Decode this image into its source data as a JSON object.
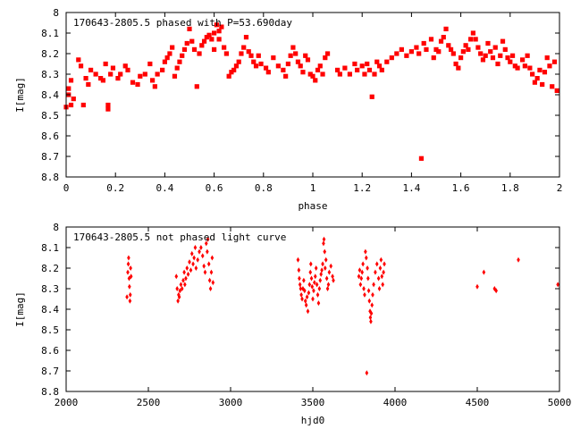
{
  "chart_data": [
    {
      "type": "scatter",
      "title": "170643-2805.5 phased with P=53.690day",
      "xlabel": "phase",
      "ylabel": "I[mag]",
      "xlim": [
        0,
        2
      ],
      "ylim": [
        8.8,
        8.0
      ],
      "y_inverted": true,
      "grid": false,
      "marker": "star",
      "color": "#ff0000",
      "x_ticks": [
        "0",
        "0.2",
        "0.4",
        "0.6",
        "0.8",
        "1",
        "1.2",
        "1.4",
        "1.6",
        "1.8",
        "2"
      ],
      "y_ticks": [
        "8",
        "8.1",
        "8.2",
        "8.3",
        "8.4",
        "8.5",
        "8.6",
        "8.7",
        "8.8"
      ],
      "x_tick_values": [
        0,
        0.2,
        0.4,
        0.6,
        0.8,
        1.0,
        1.2,
        1.4,
        1.6,
        1.8,
        2.0
      ],
      "y_tick_values": [
        8.0,
        8.1,
        8.2,
        8.3,
        8.4,
        8.5,
        8.6,
        8.7,
        8.8
      ],
      "points": [
        [
          0.0,
          8.46
        ],
        [
          0.01,
          8.4
        ],
        [
          0.01,
          8.37
        ],
        [
          0.02,
          8.45
        ],
        [
          0.02,
          8.33
        ],
        [
          0.03,
          8.42
        ],
        [
          0.05,
          8.23
        ],
        [
          0.06,
          8.26
        ],
        [
          0.07,
          8.45
        ],
        [
          0.08,
          8.32
        ],
        [
          0.09,
          8.35
        ],
        [
          0.1,
          8.28
        ],
        [
          0.12,
          8.3
        ],
        [
          0.14,
          8.32
        ],
        [
          0.15,
          8.33
        ],
        [
          0.16,
          8.25
        ],
        [
          0.17,
          8.45
        ],
        [
          0.17,
          8.47
        ],
        [
          0.18,
          8.3
        ],
        [
          0.19,
          8.27
        ],
        [
          0.21,
          8.32
        ],
        [
          0.22,
          8.3
        ],
        [
          0.24,
          8.26
        ],
        [
          0.25,
          8.28
        ],
        [
          0.27,
          8.34
        ],
        [
          0.29,
          8.35
        ],
        [
          0.3,
          8.31
        ],
        [
          0.32,
          8.3
        ],
        [
          0.34,
          8.25
        ],
        [
          0.35,
          8.33
        ],
        [
          0.36,
          8.36
        ],
        [
          0.37,
          8.3
        ],
        [
          0.39,
          8.28
        ],
        [
          0.4,
          8.24
        ],
        [
          0.41,
          8.22
        ],
        [
          0.42,
          8.2
        ],
        [
          0.43,
          8.17
        ],
        [
          0.44,
          8.31
        ],
        [
          0.45,
          8.27
        ],
        [
          0.46,
          8.24
        ],
        [
          0.47,
          8.21
        ],
        [
          0.48,
          8.18
        ],
        [
          0.49,
          8.15
        ],
        [
          0.5,
          8.08
        ],
        [
          0.51,
          8.14
        ],
        [
          0.52,
          8.18
        ],
        [
          0.53,
          8.36
        ],
        [
          0.54,
          8.2
        ],
        [
          0.55,
          8.16
        ],
        [
          0.56,
          8.14
        ],
        [
          0.57,
          8.12
        ],
        [
          0.58,
          8.11
        ],
        [
          0.59,
          8.13
        ],
        [
          0.6,
          8.1
        ],
        [
          0.6,
          8.18
        ],
        [
          0.61,
          8.06
        ],
        [
          0.62,
          8.09
        ],
        [
          0.62,
          8.13
        ],
        [
          0.63,
          8.07
        ],
        [
          0.64,
          8.17
        ],
        [
          0.65,
          8.2
        ],
        [
          0.66,
          8.31
        ],
        [
          0.67,
          8.29
        ],
        [
          0.68,
          8.28
        ],
        [
          0.69,
          8.26
        ],
        [
          0.7,
          8.24
        ],
        [
          0.71,
          8.2
        ],
        [
          0.72,
          8.17
        ],
        [
          0.73,
          8.12
        ],
        [
          0.74,
          8.19
        ],
        [
          0.75,
          8.21
        ],
        [
          0.76,
          8.24
        ],
        [
          0.77,
          8.26
        ],
        [
          0.78,
          8.21
        ],
        [
          0.79,
          8.25
        ],
        [
          0.81,
          8.27
        ],
        [
          0.82,
          8.29
        ],
        [
          0.84,
          8.22
        ],
        [
          0.86,
          8.26
        ],
        [
          0.88,
          8.28
        ],
        [
          0.89,
          8.31
        ],
        [
          0.9,
          8.25
        ],
        [
          0.91,
          8.21
        ],
        [
          0.92,
          8.17
        ],
        [
          0.93,
          8.2
        ],
        [
          0.94,
          8.24
        ],
        [
          0.95,
          8.26
        ],
        [
          0.96,
          8.29
        ],
        [
          0.97,
          8.21
        ],
        [
          0.98,
          8.23
        ],
        [
          0.99,
          8.3
        ],
        [
          1.0,
          8.31
        ],
        [
          1.01,
          8.33
        ],
        [
          1.02,
          8.28
        ],
        [
          1.03,
          8.26
        ],
        [
          1.04,
          8.3
        ],
        [
          1.05,
          8.22
        ],
        [
          1.06,
          8.2
        ],
        [
          1.1,
          8.28
        ],
        [
          1.11,
          8.3
        ],
        [
          1.13,
          8.27
        ],
        [
          1.15,
          8.3
        ],
        [
          1.17,
          8.25
        ],
        [
          1.18,
          8.28
        ],
        [
          1.2,
          8.26
        ],
        [
          1.21,
          8.3
        ],
        [
          1.22,
          8.25
        ],
        [
          1.23,
          8.28
        ],
        [
          1.24,
          8.41
        ],
        [
          1.25,
          8.3
        ],
        [
          1.26,
          8.24
        ],
        [
          1.27,
          8.26
        ],
        [
          1.28,
          8.28
        ],
        [
          1.3,
          8.24
        ],
        [
          1.32,
          8.22
        ],
        [
          1.34,
          8.2
        ],
        [
          1.36,
          8.18
        ],
        [
          1.38,
          8.21
        ],
        [
          1.4,
          8.19
        ],
        [
          1.42,
          8.17
        ],
        [
          1.43,
          8.2
        ],
        [
          1.44,
          8.71
        ],
        [
          1.45,
          8.15
        ],
        [
          1.46,
          8.18
        ],
        [
          1.48,
          8.13
        ],
        [
          1.49,
          8.22
        ],
        [
          1.5,
          8.18
        ],
        [
          1.51,
          8.19
        ],
        [
          1.52,
          8.14
        ],
        [
          1.53,
          8.12
        ],
        [
          1.54,
          8.08
        ],
        [
          1.55,
          8.16
        ],
        [
          1.56,
          8.18
        ],
        [
          1.57,
          8.2
        ],
        [
          1.58,
          8.25
        ],
        [
          1.59,
          8.27
        ],
        [
          1.6,
          8.22
        ],
        [
          1.61,
          8.19
        ],
        [
          1.62,
          8.16
        ],
        [
          1.63,
          8.18
        ],
        [
          1.64,
          8.13
        ],
        [
          1.65,
          8.1
        ],
        [
          1.66,
          8.13
        ],
        [
          1.67,
          8.17
        ],
        [
          1.68,
          8.2
        ],
        [
          1.69,
          8.23
        ],
        [
          1.7,
          8.21
        ],
        [
          1.71,
          8.15
        ],
        [
          1.72,
          8.19
        ],
        [
          1.73,
          8.22
        ],
        [
          1.74,
          8.17
        ],
        [
          1.75,
          8.25
        ],
        [
          1.76,
          8.21
        ],
        [
          1.77,
          8.14
        ],
        [
          1.78,
          8.18
        ],
        [
          1.79,
          8.22
        ],
        [
          1.8,
          8.24
        ],
        [
          1.81,
          8.21
        ],
        [
          1.82,
          8.26
        ],
        [
          1.83,
          8.27
        ],
        [
          1.85,
          8.23
        ],
        [
          1.86,
          8.26
        ],
        [
          1.87,
          8.21
        ],
        [
          1.88,
          8.27
        ],
        [
          1.89,
          8.3
        ],
        [
          1.9,
          8.34
        ],
        [
          1.91,
          8.32
        ],
        [
          1.92,
          8.28
        ],
        [
          1.93,
          8.35
        ],
        [
          1.94,
          8.29
        ],
        [
          1.95,
          8.22
        ],
        [
          1.96,
          8.26
        ],
        [
          1.97,
          8.36
        ],
        [
          1.98,
          8.24
        ],
        [
          1.99,
          8.38
        ]
      ]
    },
    {
      "type": "scatter",
      "title": "170643-2805.5 not phased light curve",
      "xlabel": "hjd0",
      "ylabel": "I[mag]",
      "xlim": [
        2000,
        5000
      ],
      "ylim": [
        8.8,
        8.0
      ],
      "y_inverted": true,
      "grid": false,
      "marker": "diamond",
      "color": "#ff0000",
      "x_ticks": [
        "2000",
        "2500",
        "3000",
        "3500",
        "4000",
        "4500",
        "5000"
      ],
      "y_ticks": [
        "8",
        "8.1",
        "8.2",
        "8.3",
        "8.4",
        "8.5",
        "8.6",
        "8.7",
        "8.8"
      ],
      "x_tick_values": [
        2000,
        2500,
        3000,
        3500,
        4000,
        4500,
        5000
      ],
      "y_tick_values": [
        8.0,
        8.1,
        8.2,
        8.3,
        8.4,
        8.5,
        8.6,
        8.7,
        8.8
      ],
      "points": [
        [
          2370,
          8.34
        ],
        [
          2375,
          8.22
        ],
        [
          2378,
          8.18
        ],
        [
          2380,
          8.15
        ],
        [
          2383,
          8.25
        ],
        [
          2385,
          8.29
        ],
        [
          2388,
          8.36
        ],
        [
          2390,
          8.33
        ],
        [
          2392,
          8.2
        ],
        [
          2395,
          8.24
        ],
        [
          2670,
          8.24
        ],
        [
          2675,
          8.3
        ],
        [
          2680,
          8.36
        ],
        [
          2684,
          8.33
        ],
        [
          2688,
          8.34
        ],
        [
          2692,
          8.31
        ],
        [
          2698,
          8.28
        ],
        [
          2705,
          8.3
        ],
        [
          2712,
          8.26
        ],
        [
          2718,
          8.22
        ],
        [
          2722,
          8.28
        ],
        [
          2728,
          8.25
        ],
        [
          2735,
          8.2
        ],
        [
          2742,
          8.23
        ],
        [
          2750,
          8.17
        ],
        [
          2758,
          8.21
        ],
        [
          2765,
          8.13
        ],
        [
          2772,
          8.18
        ],
        [
          2778,
          8.15
        ],
        [
          2785,
          8.1
        ],
        [
          2790,
          8.2
        ],
        [
          2800,
          8.16
        ],
        [
          2810,
          8.12
        ],
        [
          2820,
          8.1
        ],
        [
          2830,
          8.14
        ],
        [
          2838,
          8.19
        ],
        [
          2845,
          8.22
        ],
        [
          2852,
          8.08
        ],
        [
          2858,
          8.12
        ],
        [
          2862,
          8.06
        ],
        [
          2868,
          8.18
        ],
        [
          2873,
          8.26
        ],
        [
          2878,
          8.3
        ],
        [
          2883,
          8.22
        ],
        [
          2888,
          8.15
        ],
        [
          2893,
          8.27
        ],
        [
          3410,
          8.16
        ],
        [
          3415,
          8.21
        ],
        [
          3418,
          8.25
        ],
        [
          3422,
          8.28
        ],
        [
          3426,
          8.3
        ],
        [
          3430,
          8.33
        ],
        [
          3435,
          8.35
        ],
        [
          3440,
          8.3
        ],
        [
          3445,
          8.26
        ],
        [
          3450,
          8.31
        ],
        [
          3455,
          8.36
        ],
        [
          3460,
          8.38
        ],
        [
          3465,
          8.34
        ],
        [
          3470,
          8.41
        ],
        [
          3475,
          8.32
        ],
        [
          3480,
          8.28
        ],
        [
          3485,
          8.22
        ],
        [
          3488,
          8.18
        ],
        [
          3492,
          8.25
        ],
        [
          3496,
          8.29
        ],
        [
          3500,
          8.35
        ],
        [
          3505,
          8.31
        ],
        [
          3510,
          8.27
        ],
        [
          3515,
          8.24
        ],
        [
          3520,
          8.2
        ],
        [
          3525,
          8.28
        ],
        [
          3530,
          8.33
        ],
        [
          3535,
          8.37
        ],
        [
          3540,
          8.3
        ],
        [
          3545,
          8.26
        ],
        [
          3550,
          8.23
        ],
        [
          3555,
          8.21
        ],
        [
          3560,
          8.18
        ],
        [
          3565,
          8.08
        ],
        [
          3568,
          8.06
        ],
        [
          3572,
          8.12
        ],
        [
          3575,
          8.2
        ],
        [
          3580,
          8.16
        ],
        [
          3585,
          8.25
        ],
        [
          3590,
          8.3
        ],
        [
          3595,
          8.28
        ],
        [
          3600,
          8.22
        ],
        [
          3610,
          8.19
        ],
        [
          3620,
          8.24
        ],
        [
          3625,
          8.26
        ],
        [
          3780,
          8.24
        ],
        [
          3785,
          8.21
        ],
        [
          3790,
          8.28
        ],
        [
          3795,
          8.25
        ],
        [
          3800,
          8.22
        ],
        [
          3805,
          8.18
        ],
        [
          3810,
          8.3
        ],
        [
          3815,
          8.33
        ],
        [
          3820,
          8.12
        ],
        [
          3825,
          8.15
        ],
        [
          3828,
          8.71
        ],
        [
          3832,
          8.2
        ],
        [
          3836,
          8.25
        ],
        [
          3840,
          8.31
        ],
        [
          3844,
          8.36
        ],
        [
          3848,
          8.41
        ],
        [
          3850,
          8.44
        ],
        [
          3853,
          8.46
        ],
        [
          3856,
          8.42
        ],
        [
          3860,
          8.38
        ],
        [
          3864,
          8.33
        ],
        [
          3870,
          8.28
        ],
        [
          3880,
          8.22
        ],
        [
          3890,
          8.18
        ],
        [
          3900,
          8.25
        ],
        [
          3905,
          8.3
        ],
        [
          3910,
          8.2
        ],
        [
          3915,
          8.16
        ],
        [
          3920,
          8.24
        ],
        [
          3925,
          8.28
        ],
        [
          3930,
          8.22
        ],
        [
          3935,
          8.18
        ],
        [
          4500,
          8.29
        ],
        [
          4540,
          8.22
        ],
        [
          4605,
          8.3
        ],
        [
          4615,
          8.31
        ],
        [
          4750,
          8.16
        ],
        [
          4990,
          8.28
        ]
      ]
    }
  ]
}
